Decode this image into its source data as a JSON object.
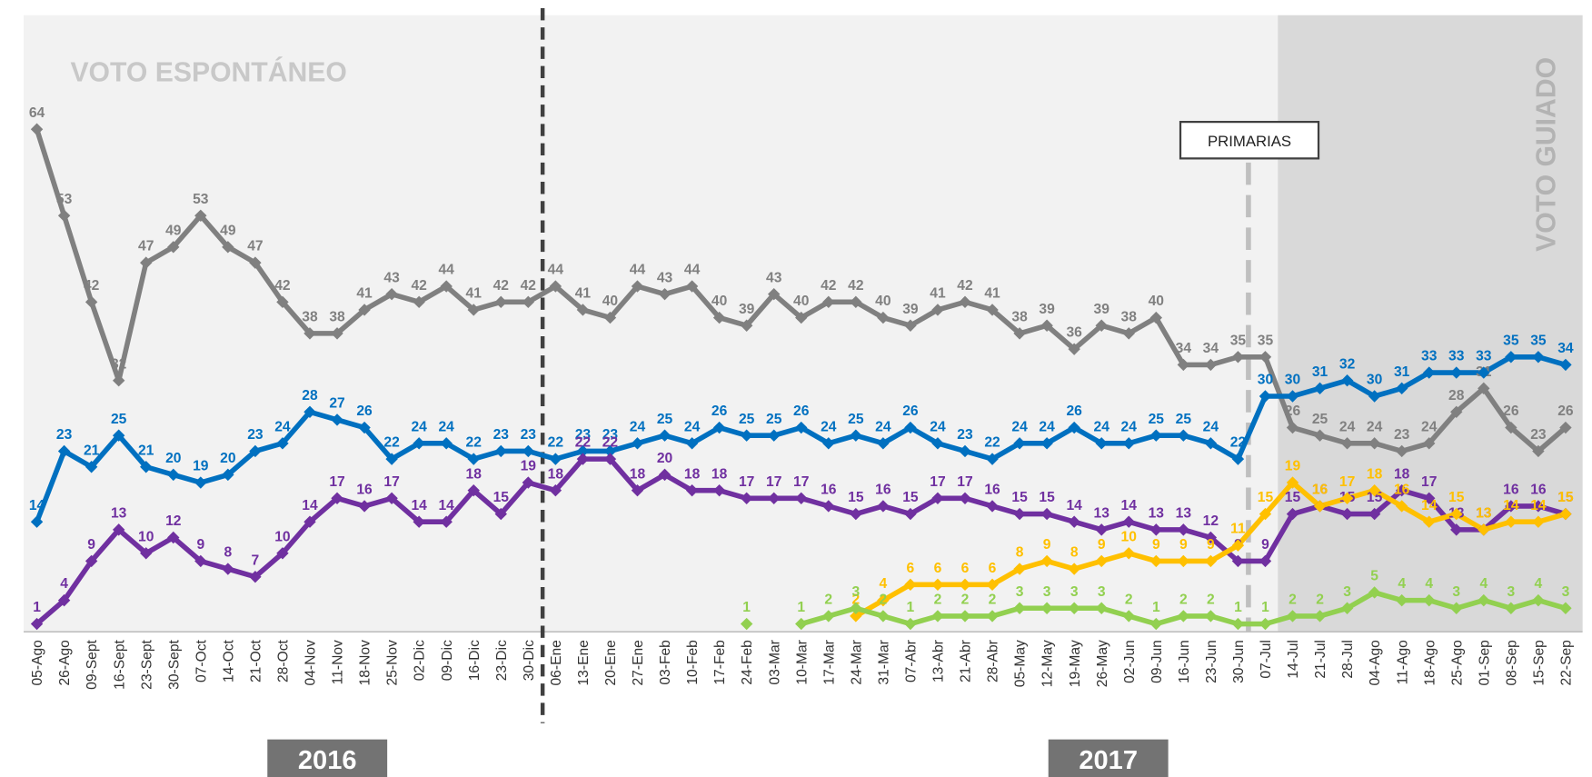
{
  "chart_data": {
    "type": "line",
    "annotations": {
      "spontaneous": "VOTO ESPONTÁNEO",
      "guided": "VOTO GUIADO",
      "primaries": "PRIMARIAS"
    },
    "years": [
      "2016",
      "2017"
    ],
    "categories": [
      "05-Ago",
      "26-Ago",
      "09-Sept",
      "16-Sept",
      "23-Sept",
      "30-Sept",
      "07-Oct",
      "14-Oct",
      "21-Oct",
      "28-Oct",
      "04-Nov",
      "11-Nov",
      "18-Nov",
      "25-Nov",
      "02-Dic",
      "09-Dic",
      "16-Dic",
      "23-Dic",
      "30-Dic",
      "06-Ene",
      "13-Ene",
      "20-Ene",
      "27-Ene",
      "03-Feb",
      "10-Feb",
      "17-Feb",
      "24-Feb",
      "03-Mar",
      "10-Mar",
      "17-Mar",
      "24-Mar",
      "31-Mar",
      "07-Abr",
      "13-Abr",
      "21-Abr",
      "28-Abr",
      "05-May",
      "12-May",
      "19-May",
      "26-May",
      "02-Jun",
      "09-Jun",
      "16-Jun",
      "23-Jun",
      "30-Jun",
      "07-Jul",
      "14-Jul",
      "21-Jul",
      "28-Jul",
      "04-Ago",
      "11-Ago",
      "18-Ago",
      "25-Ago",
      "01-Sep",
      "08-Sep",
      "15-Sep",
      "22-Sep"
    ],
    "series": [
      {
        "color": "#808080",
        "values": [
          64,
          53,
          42,
          32,
          47,
          49,
          53,
          49,
          47,
          42,
          38,
          38,
          41,
          43,
          42,
          44,
          41,
          42,
          42,
          44,
          41,
          40,
          44,
          43,
          44,
          40,
          39,
          43,
          40,
          42,
          42,
          40,
          39,
          41,
          42,
          41,
          38,
          39,
          36,
          39,
          38,
          40,
          34,
          34,
          35,
          35,
          26,
          25,
          24,
          24,
          23,
          24,
          28,
          31,
          26,
          23,
          26
        ]
      },
      {
        "color": "#0070c0",
        "values": [
          14,
          23,
          21,
          25,
          21,
          20,
          19,
          20,
          23,
          24,
          28,
          27,
          26,
          22,
          24,
          24,
          22,
          23,
          23,
          22,
          23,
          23,
          24,
          25,
          24,
          26,
          25,
          25,
          26,
          24,
          25,
          24,
          26,
          24,
          23,
          22,
          24,
          24,
          26,
          24,
          24,
          25,
          25,
          24,
          22,
          30,
          30,
          31,
          32,
          30,
          31,
          33,
          33,
          33,
          35,
          35,
          34
        ]
      },
      {
        "color": "#7030a0",
        "values": [
          1,
          4,
          9,
          13,
          10,
          12,
          9,
          8,
          7,
          10,
          14,
          17,
          16,
          17,
          14,
          14,
          18,
          15,
          19,
          18,
          22,
          22,
          18,
          20,
          18,
          18,
          17,
          17,
          17,
          16,
          15,
          16,
          15,
          17,
          17,
          16,
          15,
          15,
          14,
          13,
          14,
          13,
          13,
          12,
          9,
          9,
          15,
          16,
          15,
          15,
          18,
          17,
          13,
          13,
          16,
          16,
          15
        ]
      },
      {
        "color": "#ffc000",
        "values": [
          null,
          null,
          null,
          null,
          null,
          null,
          null,
          null,
          null,
          null,
          null,
          null,
          null,
          null,
          null,
          null,
          null,
          null,
          null,
          null,
          null,
          null,
          null,
          null,
          null,
          null,
          null,
          null,
          null,
          null,
          2,
          4,
          6,
          6,
          6,
          6,
          8,
          9,
          8,
          9,
          10,
          9,
          9,
          9,
          11,
          15,
          19,
          16,
          17,
          18,
          16,
          14,
          15,
          13,
          14,
          14,
          15
        ]
      },
      {
        "color": "#92d050",
        "values": [
          null,
          null,
          null,
          null,
          null,
          null,
          null,
          null,
          null,
          null,
          null,
          null,
          null,
          null,
          null,
          null,
          null,
          null,
          null,
          null,
          null,
          null,
          null,
          null,
          null,
          null,
          1,
          null,
          1,
          2,
          3,
          2,
          1,
          2,
          2,
          2,
          3,
          3,
          3,
          3,
          2,
          1,
          2,
          2,
          1,
          1,
          2,
          2,
          3,
          5,
          4,
          4,
          3,
          4,
          3,
          4,
          3
        ]
      }
    ]
  }
}
